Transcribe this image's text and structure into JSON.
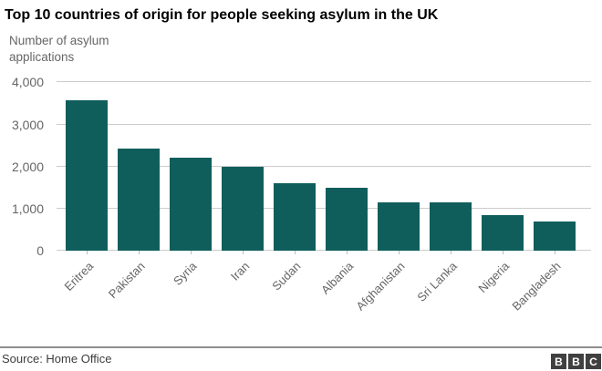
{
  "chart_data": {
    "type": "bar",
    "title": "Top 10 countries of origin for people seeking asylum in the UK",
    "ylabel": "Number of asylum\napplications",
    "xlabel": "",
    "categories": [
      "Eritrea",
      "Pakistan",
      "Syria",
      "Iran",
      "Sudan",
      "Albania",
      "Afghanistan",
      "Sri Lanka",
      "Nigeria",
      "Bangladesh"
    ],
    "values": [
      3568,
      2421,
      2204,
      1996,
      1615,
      1509,
      1153,
      1149,
      855,
      708
    ],
    "ylim": [
      0,
      4000
    ],
    "ytick_values": [
      0,
      1000,
      2000,
      3000,
      4000
    ],
    "ytick_labels": [
      "0",
      "1,000",
      "2,000",
      "3,000",
      "4,000"
    ],
    "grid": true,
    "legend": false,
    "bar_color": "#0F5E5C"
  },
  "footer": {
    "source": "Source: Home Office",
    "logo_letters": [
      "B",
      "B",
      "C"
    ]
  },
  "colors": {
    "bar": "#0F5E5C",
    "gridline": "#cccccc",
    "muted_text": "#666666",
    "title_text": "#000000",
    "source_text": "#3d3d3d",
    "footer_rule": "#8e8e8e",
    "logo_background": "#404040",
    "background": "#ffffff"
  }
}
